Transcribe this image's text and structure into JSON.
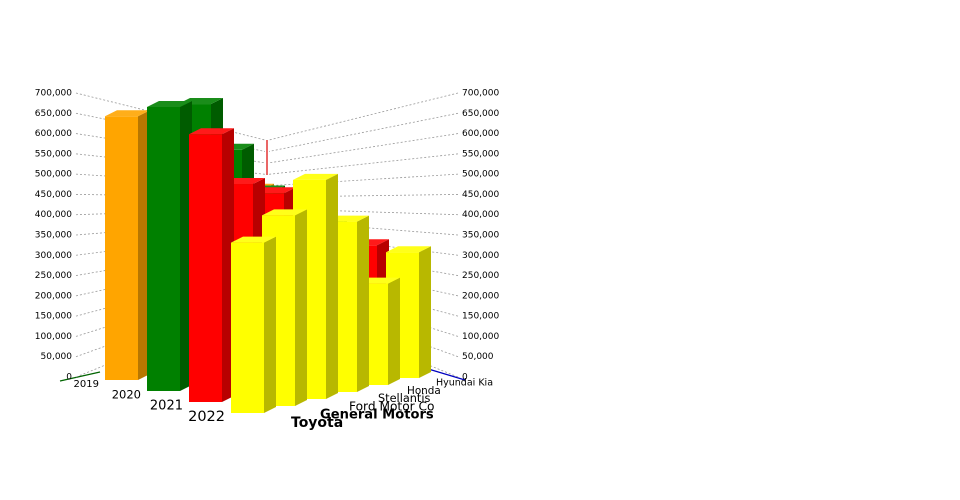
{
  "chart_data": {
    "type": "bar3d",
    "categories": [
      "Toyota",
      "General Motors",
      "Ford Motor Co",
      "Stellantis",
      "Honda",
      "Hyundai Kia"
    ],
    "series": [
      {
        "name": "2019",
        "color": "#ffa500",
        "values": [
          650000,
          600000,
          520000,
          430000,
          400000,
          330000
        ]
      },
      {
        "name": "2020",
        "color": "#008000",
        "values": [
          700000,
          690000,
          560000,
          440000,
          390000,
          320000
        ]
      },
      {
        "name": "2021",
        "color": "#ff0000",
        "values": [
          660000,
          520000,
          480000,
          400000,
          350000,
          300000
        ]
      },
      {
        "name": "2022",
        "color": "#ffff00",
        "values": [
          420000,
          470000,
          540000,
          420000,
          250000,
          310000
        ]
      }
    ],
    "ylim": [
      0,
      700000
    ],
    "yticks": [
      0,
      {
        "value": 50000,
        "label": "50,000"
      },
      {
        "value": 100000,
        "label": "100,000"
      },
      {
        "value": 150000,
        "label": "150,000"
      },
      {
        "value": 200000,
        "label": "200,000"
      },
      {
        "value": 250000,
        "label": "250,000"
      },
      {
        "value": 300000,
        "label": "300,000"
      },
      {
        "value": 350000,
        "label": "350,000"
      },
      {
        "value": 400000,
        "label": "400,000"
      },
      {
        "value": 450000,
        "label": "450,000"
      },
      {
        "value": 500000,
        "label": "500,000"
      },
      {
        "value": 550000,
        "label": "550,000"
      },
      {
        "value": 600000,
        "label": "600,000"
      },
      {
        "value": 650000,
        "label": "650,000"
      },
      {
        "value": 700000,
        "label": "700,000"
      }
    ],
    "grid": true
  }
}
